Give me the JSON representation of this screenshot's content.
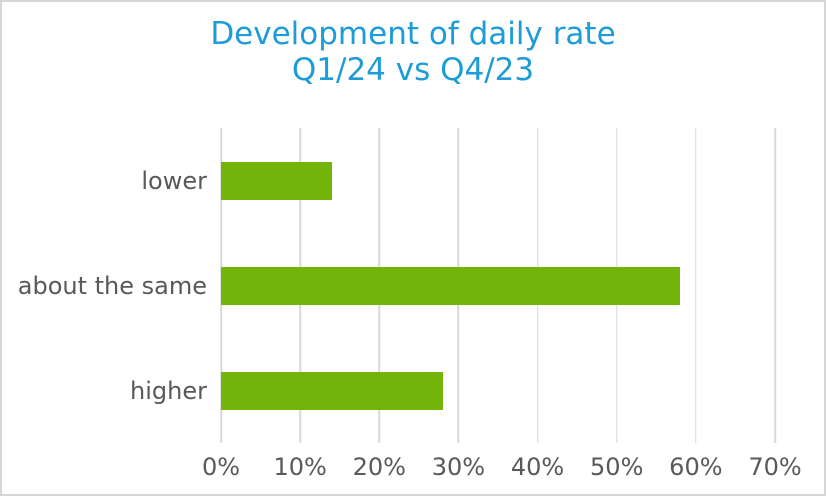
{
  "chart_data": {
    "type": "bar",
    "orientation": "horizontal",
    "title_lines": [
      "Development of daily rate",
      "Q1/24 vs Q4/23"
    ],
    "categories": [
      "lower",
      "about the same",
      "higher"
    ],
    "values": [
      14,
      58,
      28
    ],
    "value_unit": "%",
    "xlabel": "",
    "ylabel": "",
    "x_axis": {
      "min": 0,
      "max": 70,
      "tick_step": 10,
      "tick_labels": [
        "0%",
        "10%",
        "20%",
        "30%",
        "40%",
        "50%",
        "60%",
        "70%"
      ]
    },
    "grid": true,
    "legend": false,
    "colors": {
      "bar": "#73B40A",
      "title": "#1E9CD8",
      "axis_text": "#595959",
      "gridline": "#D9D9D9",
      "border": "#D6D6D6",
      "background": "#FFFFFF"
    }
  }
}
